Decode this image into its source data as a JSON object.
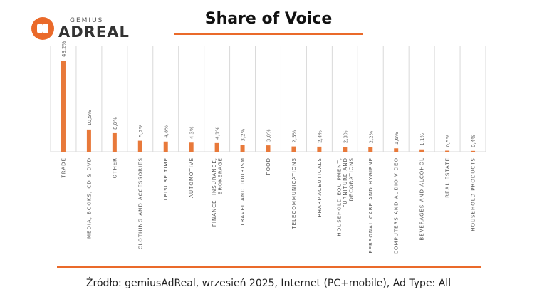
{
  "logo": {
    "small_text": "GEMIUS",
    "big_text": "ADREAL"
  },
  "title": "Share of Voice",
  "footer": "Źródło: gemiusAdReal, wrzesień 2025, Internet (PC+mobile), Ad Type: All",
  "colors": {
    "accent": "#ea6a2a",
    "bar": "#e8793a",
    "grid": "#d9d9d9"
  },
  "chart_data": {
    "type": "bar",
    "categories": [
      "TRADE",
      "MEDIA, BOOKS, CD & DVD",
      "OTHER",
      "CLOTHING AND ACCESSORIES",
      "LEISURE TIME",
      "AUTOMOTIVE",
      "FINANCE, INSURANCE, BROKERAGE",
      "TRAVEL AND TOURISM",
      "FOOD",
      "TELECOMMUNICATIONS",
      "PHARMACEUTICALS",
      "HOUSEHOLD EQUIPMENT, FURNITURE AND DECORATIONS",
      "PERSONAL CARE AND HYGIENE",
      "COMPUTERS AND AUDIO VIDEO",
      "BEVERAGES AND ALCOHOL",
      "REAL ESTATE",
      "HOUSEHOLD PRODUCTS"
    ],
    "values": [
      43.2,
      10.5,
      8.8,
      5.2,
      4.8,
      4.3,
      4.1,
      3.2,
      3.0,
      2.5,
      2.4,
      2.3,
      2.2,
      1.6,
      1.1,
      0.5,
      0.4
    ],
    "data_labels": [
      "43,2%",
      "10,5%",
      "8,8%",
      "5,2%",
      "4,8%",
      "4,3%",
      "4,1%",
      "3,2%",
      "3,0%",
      "2,5%",
      "2,4%",
      "2,3%",
      "2,2%",
      "1,6%",
      "1,1%",
      "0,5%",
      "0,4%"
    ],
    "ylim": [
      0,
      43.2
    ],
    "grid": true
  }
}
